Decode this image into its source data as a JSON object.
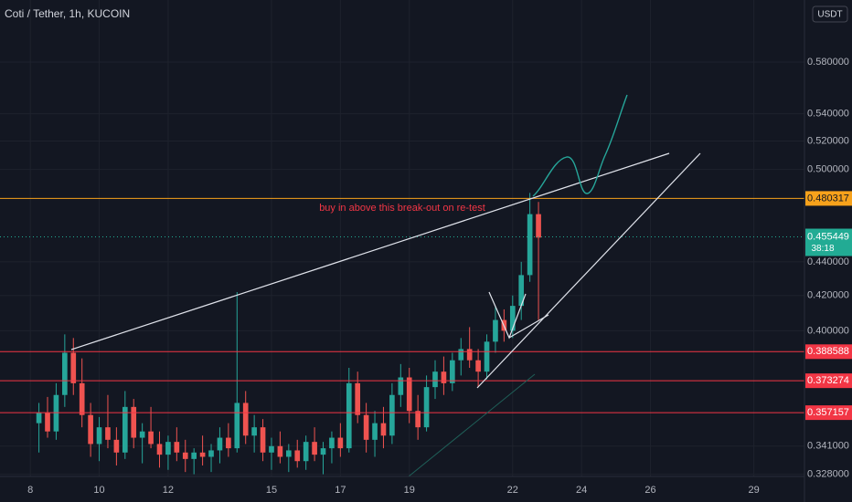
{
  "chart_data": {
    "type": "candlestick",
    "title": "Coti / Tether, 1h, KUCOIN",
    "currency": "USDT",
    "annotation": "buy in above this break-out on re-test",
    "x": [
      8.25,
      8.5,
      8.75,
      9,
      9.25,
      9.5,
      9.75,
      10,
      10.25,
      10.5,
      10.75,
      11,
      11.25,
      11.5,
      11.75,
      12,
      12.25,
      12.5,
      12.75,
      13,
      13.25,
      13.5,
      13.75,
      14,
      14.25,
      14.5,
      14.75,
      15,
      15.25,
      15.5,
      15.75,
      16,
      16.25,
      16.5,
      16.75,
      17,
      17.25,
      17.5,
      17.75,
      18,
      18.25,
      18.5,
      18.75,
      19,
      19.25,
      19.5,
      19.75,
      20,
      20.25,
      20.5,
      20.75,
      21,
      21.25,
      21.5,
      21.75,
      22,
      22.25,
      22.5,
      22.75
    ],
    "open": [
      0.352,
      0.357,
      0.348,
      0.366,
      0.388,
      0.372,
      0.356,
      0.342,
      0.35,
      0.344,
      0.338,
      0.36,
      0.345,
      0.348,
      0.342,
      0.337,
      0.343,
      0.338,
      0.335,
      0.338,
      0.336,
      0.339,
      0.345,
      0.34,
      0.362,
      0.346,
      0.35,
      0.338,
      0.341,
      0.336,
      0.339,
      0.334,
      0.343,
      0.337,
      0.34,
      0.345,
      0.34,
      0.372,
      0.356,
      0.344,
      0.352,
      0.346,
      0.366,
      0.375,
      0.358,
      0.35,
      0.37,
      0.378,
      0.372,
      0.384,
      0.39,
      0.384,
      0.378,
      0.394,
      0.406,
      0.4,
      0.414,
      0.432,
      0.47
    ],
    "high": [
      0.362,
      0.365,
      0.372,
      0.398,
      0.396,
      0.385,
      0.362,
      0.355,
      0.366,
      0.35,
      0.368,
      0.364,
      0.352,
      0.36,
      0.348,
      0.346,
      0.35,
      0.344,
      0.34,
      0.346,
      0.342,
      0.35,
      0.352,
      0.422,
      0.368,
      0.356,
      0.354,
      0.345,
      0.348,
      0.342,
      0.344,
      0.346,
      0.35,
      0.343,
      0.348,
      0.352,
      0.38,
      0.378,
      0.362,
      0.358,
      0.36,
      0.372,
      0.382,
      0.38,
      0.366,
      0.376,
      0.384,
      0.386,
      0.388,
      0.396,
      0.402,
      0.39,
      0.398,
      0.414,
      0.412,
      0.42,
      0.44,
      0.484,
      0.478
    ],
    "low": [
      0.338,
      0.345,
      0.344,
      0.36,
      0.366,
      0.35,
      0.336,
      0.334,
      0.34,
      0.332,
      0.335,
      0.34,
      0.333,
      0.34,
      0.331,
      0.33,
      0.334,
      0.329,
      0.328,
      0.332,
      0.329,
      0.333,
      0.336,
      0.338,
      0.342,
      0.338,
      0.334,
      0.33,
      0.333,
      0.329,
      0.331,
      0.33,
      0.334,
      0.328,
      0.333,
      0.336,
      0.338,
      0.352,
      0.338,
      0.336,
      0.34,
      0.342,
      0.36,
      0.352,
      0.344,
      0.348,
      0.364,
      0.366,
      0.368,
      0.376,
      0.38,
      0.37,
      0.374,
      0.388,
      0.394,
      0.396,
      0.406,
      0.428,
      0.406
    ],
    "close": [
      0.357,
      0.348,
      0.366,
      0.388,
      0.372,
      0.356,
      0.342,
      0.35,
      0.344,
      0.338,
      0.36,
      0.345,
      0.348,
      0.342,
      0.337,
      0.343,
      0.338,
      0.335,
      0.338,
      0.336,
      0.339,
      0.345,
      0.34,
      0.362,
      0.346,
      0.35,
      0.338,
      0.341,
      0.336,
      0.339,
      0.334,
      0.343,
      0.337,
      0.34,
      0.345,
      0.34,
      0.372,
      0.356,
      0.344,
      0.352,
      0.346,
      0.366,
      0.375,
      0.358,
      0.35,
      0.37,
      0.378,
      0.372,
      0.384,
      0.39,
      0.384,
      0.378,
      0.394,
      0.406,
      0.4,
      0.414,
      0.432,
      0.47,
      0.455
    ],
    "up_color": "#26a69a",
    "down_color": "#ef5350",
    "xlim": [
      7.12,
      30.47
    ],
    "xticks": [
      8,
      10,
      12,
      15,
      17,
      19,
      22,
      24,
      26,
      29
    ],
    "ylim": [
      0.327,
      0.632
    ],
    "log_scale": true,
    "grid": true,
    "yticks": [
      {
        "value": 0.58,
        "label": "0.580000"
      },
      {
        "value": 0.54,
        "label": "0.540000"
      },
      {
        "value": 0.52,
        "label": "0.520000"
      },
      {
        "value": 0.5,
        "label": "0.500000"
      },
      {
        "value": 0.44,
        "label": "0.440000"
      },
      {
        "value": 0.42,
        "label": "0.420000"
      },
      {
        "value": 0.4,
        "label": "0.400000"
      },
      {
        "value": 0.341,
        "label": "0.341000"
      },
      {
        "value": 0.328,
        "label": "0.328000"
      }
    ],
    "levels": [
      {
        "value": 0.480317,
        "color": "#f7a21b"
      },
      {
        "value": 0.388588,
        "color": "#f23645"
      },
      {
        "value": 0.373274,
        "color": "#f23645"
      },
      {
        "value": 0.357157,
        "color": "#f23645"
      }
    ],
    "current_price": {
      "value": 0.455449,
      "countdown": "38:18",
      "color": "#22ab94"
    }
  }
}
